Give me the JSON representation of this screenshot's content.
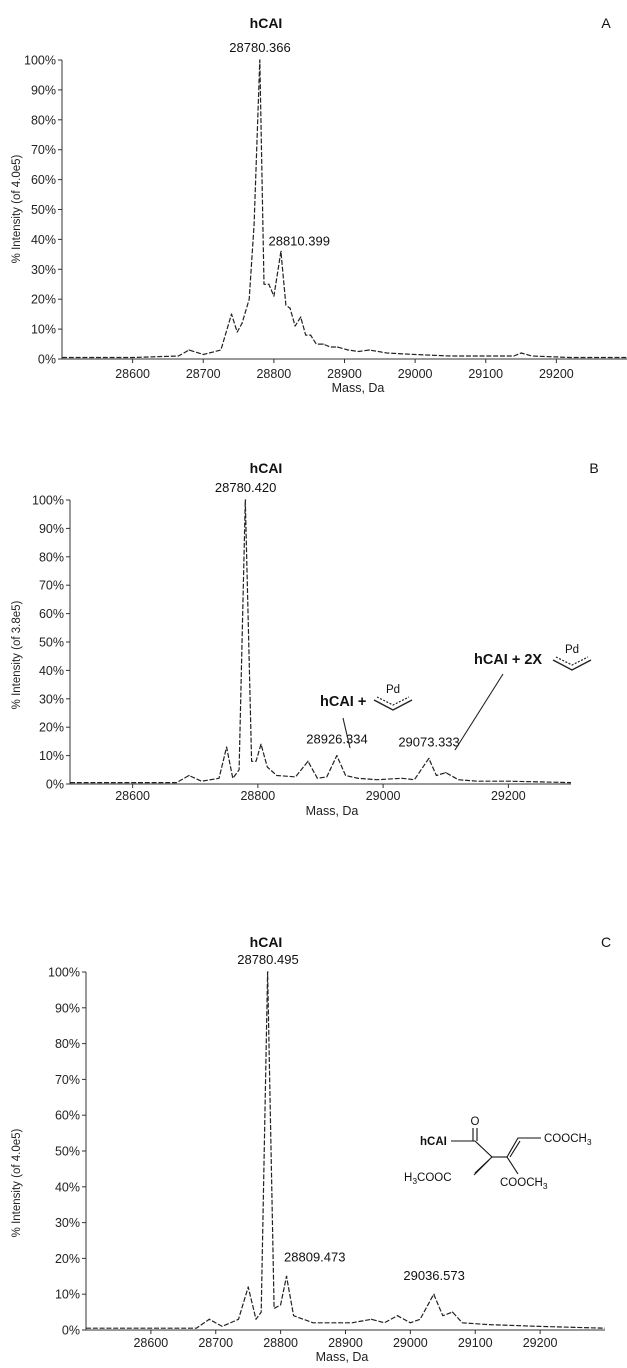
{
  "chart_data": [
    {
      "panel": "A",
      "type": "line",
      "title": "hCAI",
      "xlabel": "Mass, Da",
      "ylabel": "% Intensity (of 4.0e5)",
      "xlim": [
        28500,
        29300
      ],
      "ylim": [
        0,
        100
      ],
      "x_ticks": [
        "28600",
        "28700",
        "28800",
        "28900",
        "29000",
        "29100",
        "29200"
      ],
      "y_ticks": [
        "0%",
        "10%",
        "20%",
        "30%",
        "40%",
        "50%",
        "60%",
        "70%",
        "80%",
        "90%",
        "100%"
      ],
      "peaks": [
        {
          "x": 28680,
          "y": 3
        },
        {
          "x": 28740,
          "y": 15
        },
        {
          "x": 28755,
          "y": 12
        },
        {
          "x": 28780.366,
          "y": 100,
          "label": "28780.366"
        },
        {
          "x": 28793,
          "y": 25
        },
        {
          "x": 28810.399,
          "y": 36,
          "label": "28810.399"
        },
        {
          "x": 28823,
          "y": 17
        },
        {
          "x": 28838,
          "y": 14
        },
        {
          "x": 28852,
          "y": 8
        },
        {
          "x": 28870,
          "y": 5
        },
        {
          "x": 28890,
          "y": 4
        },
        {
          "x": 28935,
          "y": 3
        },
        {
          "x": 29150,
          "y": 2
        }
      ],
      "series": [
        {
          "values": [
            [
              28500,
              0.5
            ],
            [
              28600,
              0.5
            ],
            [
              28665,
              1
            ],
            [
              28680,
              3
            ],
            [
              28700,
              1.5
            ],
            [
              28725,
              3
            ],
            [
              28740,
              15
            ],
            [
              28748,
              9
            ],
            [
              28755,
              12
            ],
            [
              28765,
              20
            ],
            [
              28772,
              45
            ],
            [
              28780,
              100
            ],
            [
              28786,
              25
            ],
            [
              28793,
              25
            ],
            [
              28800,
              21
            ],
            [
              28810,
              36
            ],
            [
              28817,
              18
            ],
            [
              28823,
              17
            ],
            [
              28830,
              11
            ],
            [
              28838,
              14
            ],
            [
              28845,
              8
            ],
            [
              28852,
              8
            ],
            [
              28860,
              5
            ],
            [
              28870,
              5
            ],
            [
              28880,
              4
            ],
            [
              28890,
              4
            ],
            [
              28905,
              3
            ],
            [
              28920,
              2.5
            ],
            [
              28935,
              3
            ],
            [
              28960,
              2
            ],
            [
              29000,
              1.5
            ],
            [
              29050,
              1
            ],
            [
              29100,
              1
            ],
            [
              29140,
              1
            ],
            [
              29150,
              2
            ],
            [
              29165,
              1
            ],
            [
              29220,
              0.5
            ],
            [
              29300,
              0.5
            ]
          ]
        }
      ]
    },
    {
      "panel": "B",
      "type": "line",
      "title": "hCAI",
      "xlabel": "Mass, Da",
      "ylabel": "% Intensity (of 3.8e5)",
      "xlim": [
        28500,
        29300
      ],
      "ylim": [
        0,
        100
      ],
      "x_ticks": [
        "28600",
        "28800",
        "29000",
        "29200"
      ],
      "y_ticks": [
        "0%",
        "10%",
        "20%",
        "30%",
        "40%",
        "50%",
        "60%",
        "70%",
        "80%",
        "90%",
        "100%"
      ],
      "annotations": [
        {
          "text": "hCAI +",
          "pd": "Pd",
          "x": 28926.334
        },
        {
          "text": "hCAI + 2X",
          "pd": "Pd",
          "x": 29073.333
        }
      ],
      "peaks": [
        {
          "x": 28690,
          "y": 3
        },
        {
          "x": 28750,
          "y": 13
        },
        {
          "x": 28780.42,
          "y": 100,
          "label": "28780.420"
        },
        {
          "x": 28805,
          "y": 14
        },
        {
          "x": 28880,
          "y": 8
        },
        {
          "x": 28926.334,
          "y": 10,
          "label": "28926.334"
        },
        {
          "x": 28960,
          "y": 2
        },
        {
          "x": 29030,
          "y": 2
        },
        {
          "x": 29073.333,
          "y": 9,
          "label": "29073.333"
        },
        {
          "x": 29100,
          "y": 4
        }
      ],
      "series": [
        {
          "values": [
            [
              28500,
              0.5
            ],
            [
              28670,
              0.5
            ],
            [
              28690,
              3
            ],
            [
              28710,
              1
            ],
            [
              28738,
              2
            ],
            [
              28750,
              13
            ],
            [
              28760,
              2
            ],
            [
              28770,
              5
            ],
            [
              28780,
              100
            ],
            [
              28790,
              8
            ],
            [
              28797,
              8
            ],
            [
              28805,
              14
            ],
            [
              28815,
              6
            ],
            [
              28830,
              3
            ],
            [
              28860,
              2.5
            ],
            [
              28880,
              8
            ],
            [
              28895,
              2
            ],
            [
              28910,
              2.5
            ],
            [
              28926,
              10
            ],
            [
              28940,
              3
            ],
            [
              28960,
              2
            ],
            [
              28990,
              1.5
            ],
            [
              29030,
              2
            ],
            [
              29050,
              1.5
            ],
            [
              29073,
              9
            ],
            [
              29085,
              3
            ],
            [
              29100,
              4
            ],
            [
              29120,
              1.5
            ],
            [
              29150,
              1
            ],
            [
              29200,
              1
            ],
            [
              29300,
              0.5
            ]
          ]
        }
      ]
    },
    {
      "panel": "C",
      "type": "line",
      "title": "hCAI",
      "xlabel": "Mass, Da",
      "ylabel": "% Intensity (of 4.0e5)",
      "xlim": [
        28500,
        29300
      ],
      "ylim": [
        0,
        100
      ],
      "x_ticks": [
        "28600",
        "28700",
        "28800",
        "28900",
        "29000",
        "29100",
        "29200"
      ],
      "y_ticks": [
        "0%",
        "10%",
        "20%",
        "30%",
        "40%",
        "50%",
        "60%",
        "70%",
        "80%",
        "90%",
        "100%"
      ],
      "structure_labels": {
        "protein": "hCAI",
        "carbonyl": "O",
        "ester_right_top": "COOCH3",
        "ester_left": "H3COOC",
        "ester_right_bottom": "COOCH3"
      },
      "peaks": [
        {
          "x": 28690,
          "y": 3
        },
        {
          "x": 28750,
          "y": 12
        },
        {
          "x": 28780.495,
          "y": 100,
          "label": "28780.495"
        },
        {
          "x": 28809.473,
          "y": 15,
          "label": "28809.473"
        },
        {
          "x": 28940,
          "y": 3
        },
        {
          "x": 28980,
          "y": 4
        },
        {
          "x": 29036.573,
          "y": 10,
          "label": "29036.573"
        },
        {
          "x": 29065,
          "y": 5
        }
      ],
      "series": [
        {
          "values": [
            [
              28500,
              0.5
            ],
            [
              28670,
              0.5
            ],
            [
              28690,
              3
            ],
            [
              28710,
              1
            ],
            [
              28735,
              3
            ],
            [
              28750,
              12
            ],
            [
              28762,
              3
            ],
            [
              28770,
              5
            ],
            [
              28780,
              100
            ],
            [
              28790,
              6
            ],
            [
              28800,
              7
            ],
            [
              28809,
              15
            ],
            [
              28820,
              4
            ],
            [
              28850,
              2
            ],
            [
              28880,
              2
            ],
            [
              28910,
              2
            ],
            [
              28940,
              3
            ],
            [
              28960,
              2
            ],
            [
              28980,
              4
            ],
            [
              29000,
              2
            ],
            [
              29015,
              3
            ],
            [
              29036,
              10
            ],
            [
              29050,
              4
            ],
            [
              29065,
              5
            ],
            [
              29080,
              2
            ],
            [
              29120,
              1.5
            ],
            [
              29200,
              1
            ],
            [
              29300,
              0.5
            ]
          ]
        }
      ]
    }
  ]
}
